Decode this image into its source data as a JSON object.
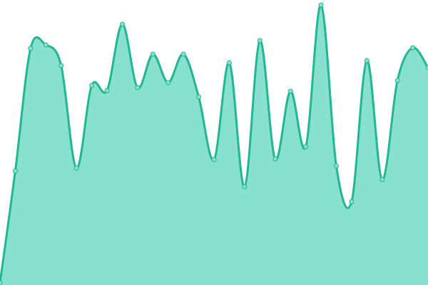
{
  "chart_data": {
    "type": "area",
    "categories": [
      null,
      null,
      null,
      null,
      null,
      null,
      null,
      null,
      null,
      null,
      null,
      null,
      null,
      null,
      null,
      null,
      null,
      null,
      null,
      null,
      null,
      null,
      null,
      null,
      null,
      null,
      null,
      null,
      null
    ],
    "series": [
      {
        "color": "#1fb892",
        "fill": "#88e0cf",
        "values": [
          3,
          160,
          332,
          337,
          308,
          164,
          280,
          273,
          366,
          277,
          324,
          284,
          324,
          264,
          176,
          312,
          138,
          343,
          177,
          272,
          194,
          393,
          167,
          117,
          315,
          148,
          287,
          333,
          305
        ]
      }
    ],
    "ylim": [
      0,
      400
    ]
  }
}
